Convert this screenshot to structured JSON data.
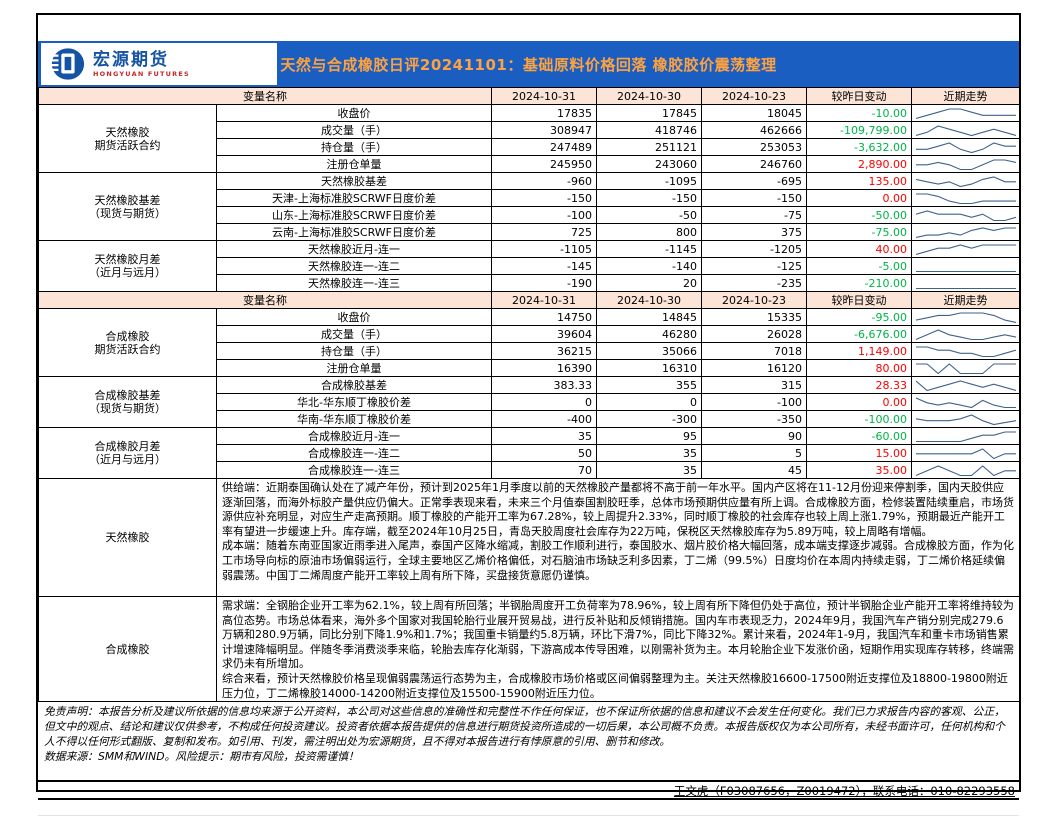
{
  "header": {
    "logo_name": "宏源期货",
    "logo_sub": "HONGYUAN FUTURES",
    "title": "天然与合成橡胶日评20241101：基础原料价格回落 橡胶胶价震荡整理"
  },
  "colors": {
    "band_blue": "#1b5ec2",
    "title_orange": "#ffa23e",
    "header_row_bg": "#fce4d6",
    "positive_red": "#ff0000",
    "negative_green": "#00b447",
    "sparkline_blue": "#3f628c",
    "logo_blue": "#1553a5",
    "logo_red": "#c62828"
  },
  "table": {
    "header": {
      "name_label": "变量名称",
      "dates": [
        "2024-10-31",
        "2024-10-30",
        "2024-10-23"
      ],
      "change_label": "较昨日变动",
      "trend_label": "近期走势"
    },
    "blocks": [
      {
        "groups": [
          {
            "label": "天然橡胶\n期货活跃合约",
            "rows": [
              {
                "label": "收盘价",
                "values": [
                  "17835",
                  "17845",
                  "18045"
                ],
                "change": "-10.00",
                "tone": "green",
                "spark": [
                  2,
                  3,
                  4,
                  5,
                  5,
                  4,
                  3,
                  3,
                  3,
                  3
                ]
              },
              {
                "label": "成交量（手）",
                "values": [
                  "308947",
                  "418746",
                  "462666"
                ],
                "change": "-109,799.00",
                "tone": "green",
                "spark": [
                  3,
                  4,
                  6,
                  5,
                  4,
                  3,
                  4,
                  5,
                  4,
                  3
                ]
              },
              {
                "label": "持仓量（手）",
                "values": [
                  "247489",
                  "251121",
                  "253053"
                ],
                "change": "-3,632.00",
                "tone": "green",
                "spark": [
                  4,
                  4,
                  5,
                  6,
                  4,
                  3,
                  4,
                  6,
                  5,
                  5
                ]
              },
              {
                "label": "注册仓单量",
                "values": [
                  "245950",
                  "243060",
                  "246760"
                ],
                "change": "2,890.00",
                "tone": "red",
                "spark": [
                  5,
                  5,
                  6,
                  5,
                  3,
                  3,
                  5,
                  7,
                  7,
                  6
                ]
              }
            ]
          },
          {
            "label": "天然橡胶基差\n（现货与期货）",
            "rows": [
              {
                "label": "天然橡胶基差",
                "values": [
                  "-960",
                  "-1095",
                  "-695"
                ],
                "change": "135.00",
                "tone": "red",
                "spark": [
                  5,
                  4,
                  3,
                  4,
                  2,
                  3,
                  5,
                  6,
                  4,
                  4
                ]
              },
              {
                "label": "天津-上海标准胶SCRWF日度价差",
                "values": [
                  "-150",
                  "-150",
                  "-150"
                ],
                "change": "0.00",
                "tone": "red",
                "spark": [
                  6,
                  6,
                  5,
                  3,
                  2,
                  2,
                  3,
                  3,
                  3,
                  3
                ]
              },
              {
                "label": "山东-上海标准胶SCRWF日度价差",
                "values": [
                  "-100",
                  "-50",
                  "-75"
                ],
                "change": "-50.00",
                "tone": "green",
                "spark": [
                  5,
                  6,
                  5,
                  5,
                  5,
                  4,
                  5,
                  3,
                  3,
                  4
                ]
              },
              {
                "label": "云南-上海标准胶SCRWF日度价差",
                "values": [
                  "725",
                  "800",
                  "375"
                ],
                "change": "-75.00",
                "tone": "green",
                "spark": [
                  2,
                  3,
                  3,
                  4,
                  3,
                  5,
                  6,
                  5,
                  6,
                  6
                ]
              }
            ]
          },
          {
            "label": "天然橡胶月差\n（近月与远月）",
            "rows": [
              {
                "label": "天然橡胶近月-连一",
                "values": [
                  "-1105",
                  "-1145",
                  "-1205"
                ],
                "change": "40.00",
                "tone": "red",
                "spark": [
                  3,
                  4,
                  5,
                  5,
                  6,
                  5,
                  6,
                  6,
                  6,
                  6
                ]
              },
              {
                "label": "天然橡胶连一-连二",
                "values": [
                  "-145",
                  "-140",
                  "-125"
                ],
                "change": "-5.00",
                "tone": "green",
                "spark": [
                  5,
                  5,
                  5,
                  5,
                  5,
                  5,
                  5,
                  5,
                  5,
                  5
                ]
              },
              {
                "label": "天然橡胶连一-连三",
                "values": [
                  "-190",
                  "20",
                  "-235"
                ],
                "change": "-210.00",
                "tone": "green",
                "spark": [
                  5,
                  5,
                  5,
                  5,
                  5,
                  5,
                  5,
                  5,
                  5,
                  5
                ]
              }
            ]
          }
        ]
      },
      {
        "groups": [
          {
            "label": "合成橡胶\n期货活跃合约",
            "rows": [
              {
                "label": "收盘价",
                "values": [
                  "14750",
                  "14845",
                  "15335"
                ],
                "change": "-95.00",
                "tone": "green",
                "spark": [
                  3,
                  4,
                  5,
                  5,
                  6,
                  6,
                  6,
                  5,
                  3,
                  2
                ]
              },
              {
                "label": "成交量（手）",
                "values": [
                  "39604",
                  "46280",
                  "26028"
                ],
                "change": "-6,676.00",
                "tone": "green",
                "spark": [
                  3,
                  5,
                  7,
                  5,
                  4,
                  3,
                  3,
                  4,
                  5,
                  4
                ]
              },
              {
                "label": "持仓量（手）",
                "values": [
                  "36215",
                  "35066",
                  "7018"
                ],
                "change": "1,149.00",
                "tone": "red",
                "spark": [
                  6,
                  6,
                  5,
                  5,
                  4,
                  4,
                  3,
                  3,
                  4,
                  5
                ]
              },
              {
                "label": "注册仓单量",
                "values": [
                  "16390",
                  "16310",
                  "16120"
                ],
                "change": "80.00",
                "tone": "red",
                "spark": [
                  5,
                  5,
                  4,
                  5,
                  4,
                  4,
                  4,
                  5,
                  5,
                  5
                ]
              }
            ]
          },
          {
            "label": "合成橡胶基差\n（现货与期货）",
            "rows": [
              {
                "label": "合成橡胶基差",
                "values": [
                  "383.33",
                  "355",
                  "315"
                ],
                "change": "28.33",
                "tone": "red",
                "spark": [
                  6,
                  3,
                  4,
                  5,
                  6,
                  5,
                  4,
                  5,
                  4,
                  3
                ]
              },
              {
                "label": "华北-华东顺丁橡胶价差",
                "values": [
                  "0",
                  "0",
                  "-100"
                ],
                "change": "0.00",
                "tone": "red",
                "spark": [
                  7,
                  5,
                  4,
                  5,
                  4,
                  3,
                  6,
                  4,
                  3,
                  3
                ]
              },
              {
                "label": "华南-华东顺丁橡胶价差",
                "values": [
                  "-400",
                  "-300",
                  "-350"
                ],
                "change": "-100.00",
                "tone": "green",
                "spark": [
                  5,
                  4,
                  4,
                  4,
                  5,
                  7,
                  4,
                  2,
                  3,
                  4
                ]
              }
            ]
          },
          {
            "label": "合成橡胶月差\n（近月与远月）",
            "rows": [
              {
                "label": "合成橡胶近月-连一",
                "values": [
                  "35",
                  "95",
                  "90"
                ],
                "change": "-60.00",
                "tone": "green",
                "spark": [
                  3,
                  3,
                  3,
                  3,
                  3,
                  4,
                  5,
                  5,
                  6,
                  6
                ]
              },
              {
                "label": "合成橡胶连一-连二",
                "values": [
                  "50",
                  "35",
                  "5"
                ],
                "change": "15.00",
                "tone": "red",
                "spark": [
                  5,
                  5,
                  5,
                  5,
                  5,
                  5,
                  7,
                  3,
                  5,
                  5
                ]
              },
              {
                "label": "合成橡胶连一-连三",
                "values": [
                  "70",
                  "35",
                  "45"
                ],
                "change": "35.00",
                "tone": "red",
                "spark": [
                  4,
                  5,
                  6,
                  5,
                  4,
                  4,
                  6,
                  4,
                  5,
                  5
                ]
              }
            ]
          }
        ]
      }
    ]
  },
  "analysis": [
    {
      "label": "天然橡胶",
      "paragraphs": [
        "供给端：近期泰国确认处在了减产年份，预计到2025年1月季度以前的天然橡胶产量都将不高于前一年水平。国内产区将在11-12月份迎来停割季，国内天胶供应逐渐回落，而海外标胶产量供应仍偏大。正常季表现来看，未来三个月值泰国割胶旺季，总体市场预期供应量有所上调。合成橡胶方面，检修装置陆续重启，市场货源供应补充明显，对应生产走高预期。顺丁橡胶的产能开工率为67.28%，较上周提升2.33%，同时顺丁橡胶的社会库存也较上周上涨1.79%，预期最近产能开工率有望进一步缓速上升。库存端，截至2024年10月25日，青岛天胶周度社会库存为22万吨，保税区天然橡胶库存为5.89万吨，较上周略有增幅。",
        "成本端：随着东南亚国家近雨季进入尾声，泰国产区降水缩减，割胶工作顺利进行，泰国胶水、烟片胶价格大幅回落，成本端支撑逐步减弱。合成橡胶方面，作为化工市场导向标的原油市场偏弱运行，全球主要地区乙烯价格偏低，对石脑油市场缺乏利多因素，丁二烯（99.5%）日度均价在本周内持续走弱，丁二烯价格延续偏弱震荡。中国丁二烯周度产能开工率较上周有所下降，买盘接货意愿仍谨慎。"
      ]
    },
    {
      "label": "合成橡胶",
      "paragraphs": [
        "需求端：全钢胎企业开工率为62.1%，较上周有所回落；半钢胎周度开工负荷率为78.96%，较上周有所下降但仍处于高位，预计半钢胎企业产能开工率将维持较为高位态势。市场总体看来，海外多个国家对我国轮胎行业展开贸易战，进行反补贴和反倾销措施。国内车市表现乏力，2024年9月，我国汽车产销分别完成279.6万辆和280.9万辆，同比分别下降1.9%和1.7%；我国重卡销量约5.8万辆，环比下滑7%，同比下降32%。累计来看，2024年1-9月，我国汽车和重卡市场销售累计增速降幅明显。伴随冬季消费淡季来临，轮胎去库存化渐弱，下游高成本传导困难，以刚需补货为主。本月轮胎企业下发涨价函，短期作用实现库存转移，终端需求仍未有所增加。",
        "综合来看，预计天然橡胶价格呈现偏弱震荡运行态势为主，合成橡胶市场价格或区间偏弱整理为主。关注天然橡胶16600-17500附近支撑位及18800-19800附近压力位，丁二烯橡胶14000-14200附近支撑位及15500-15900附近压力位。"
      ]
    }
  ],
  "disclaimer": {
    "text": "免责声明：本报告分析及建议所依据的信息均来源于公开资料，本公司对这些信息的准确性和完整性不作任何保证，也不保证所依据的信息和建议不会发生任何变化。我们已力求报告内容的客观、公正，但文中的观点、结论和建议仅供参考，不构成任何投资建议。投资者依据本报告提供的信息进行期货投资所造成的一切后果，本公司概不负责。本报告版权仅为本公司所有，未经书面许可，任何机构和个人不得以任何形式翻版、复制和发布。如引用、刊发，需注明出处为宏源期货，且不得对本报告进行有悖原意的引用、删节和修改。",
    "source": "数据来源：SMM和WIND。风险提示：期市有风险，投资需谨慎！"
  },
  "footer": {
    "contact": "王文虎（F03087656，Z0019472），联系电话：010-82293558"
  }
}
